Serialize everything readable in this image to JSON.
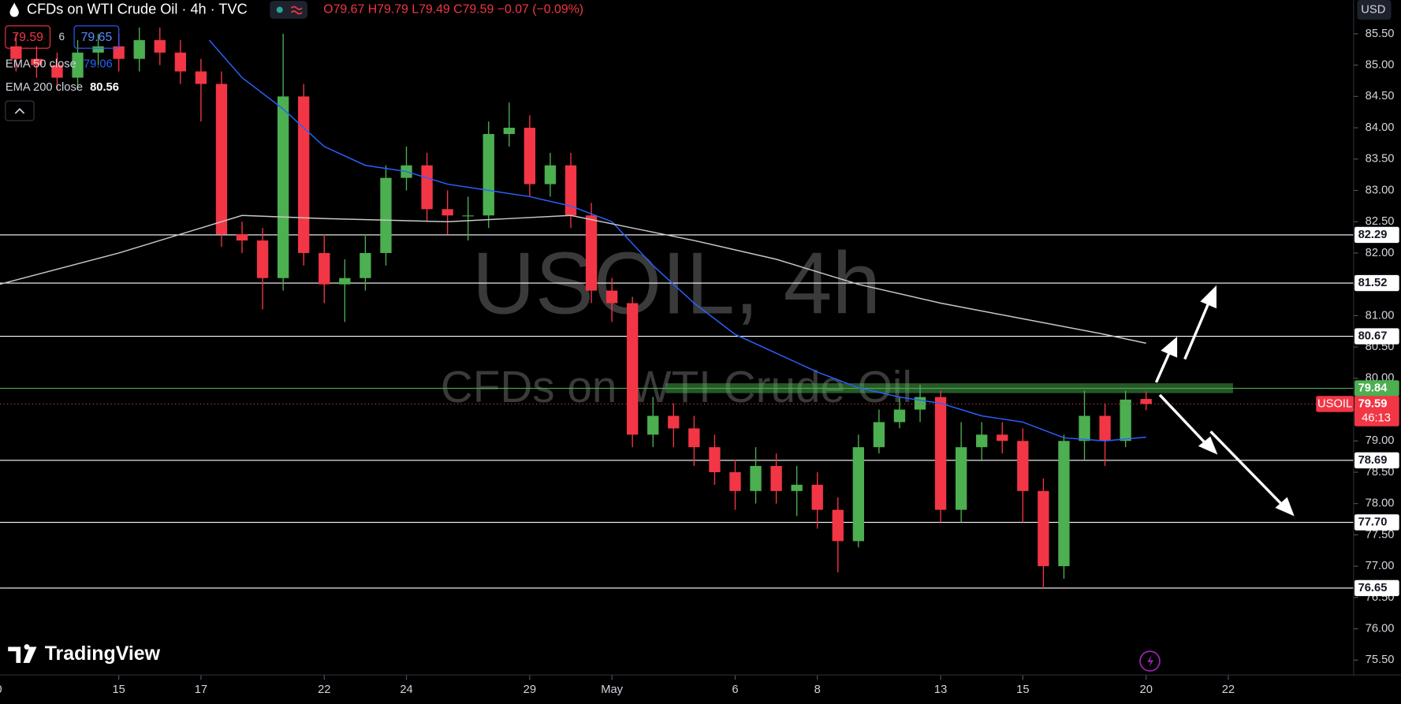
{
  "header": {
    "symbol": "CFDs on WTI Crude Oil · 4h · TVC",
    "quote": "O79.67 H79.79 L79.49 C79.59 −0.07 (−0.09%)",
    "spread": "6",
    "ask": "79.65",
    "currency": "USD"
  },
  "watermark": {
    "title": "USOIL, 4h",
    "subtitle": "CFDs on WTI Crude Oil"
  },
  "price_tag": {
    "symbol": "USOIL",
    "timer": "46:13"
  },
  "branding": "TradingView",
  "chart_data": {
    "type": "candlestick",
    "up_color": "#4caf50",
    "down_color": "#f23645",
    "xlim": [
      -2.89,
      30.05
    ],
    "ylim": [
      75.27,
      86.04
    ],
    "xticks": [
      {
        "value": -3,
        "label": "10"
      },
      {
        "value": 0,
        "label": "15"
      },
      {
        "value": 2,
        "label": "17"
      },
      {
        "value": 5,
        "label": "22"
      },
      {
        "value": 7,
        "label": "24"
      },
      {
        "value": 10,
        "label": "29"
      },
      {
        "value": 12,
        "label": "May"
      },
      {
        "value": 15,
        "label": "6"
      },
      {
        "value": 17,
        "label": "8"
      },
      {
        "value": 20,
        "label": "13"
      },
      {
        "value": 22,
        "label": "15"
      },
      {
        "value": 25,
        "label": "20"
      },
      {
        "value": 27,
        "label": "22"
      }
    ],
    "yticks": [
      {
        "value": 75.5,
        "label": "75.50"
      },
      {
        "value": 76,
        "label": "76.00"
      },
      {
        "value": 76.5,
        "label": "76.50"
      },
      {
        "value": 77,
        "label": "77.00"
      },
      {
        "value": 77.5,
        "label": "77.50"
      },
      {
        "value": 78,
        "label": "78.00"
      },
      {
        "value": 78.5,
        "label": "78.50"
      },
      {
        "value": 79,
        "label": "79.00"
      },
      {
        "value": 79.5,
        "label": "79.50"
      },
      {
        "value": 80,
        "label": "80.00"
      },
      {
        "value": 80.5,
        "label": "80.50"
      },
      {
        "value": 81,
        "label": "81.00"
      },
      {
        "value": 81.5,
        "label": "81.50"
      },
      {
        "value": 82,
        "label": "82.00"
      },
      {
        "value": 82.5,
        "label": "82.50"
      },
      {
        "value": 83,
        "label": "83.00"
      },
      {
        "value": 83.5,
        "label": "83.50"
      },
      {
        "value": 84,
        "label": "84.00"
      },
      {
        "value": 84.5,
        "label": "84.50"
      },
      {
        "value": 85,
        "label": "85.00"
      },
      {
        "value": 85.5,
        "label": "85.50"
      }
    ],
    "x": [
      -2.5,
      -2,
      -1.5,
      -1,
      -0.5,
      0,
      0.5,
      1,
      1.5,
      2,
      2.5,
      3,
      3.5,
      4,
      4.5,
      5,
      5.5,
      6,
      6.5,
      7,
      7.5,
      8,
      8.5,
      9,
      9.5,
      10,
      10.5,
      11,
      11.5,
      12,
      12.5,
      13,
      13.5,
      14,
      14.5,
      15,
      15.5,
      16,
      16.5,
      17,
      17.5,
      18,
      18.5,
      19,
      19.5,
      20,
      20.5,
      21,
      21.5,
      22,
      22.5,
      23,
      23.5,
      24,
      24.5,
      25
    ],
    "open": [
      85.3,
      85.1,
      85.0,
      84.8,
      85.2,
      85.3,
      85.1,
      85.4,
      85.2,
      84.9,
      84.7,
      82.3,
      82.2,
      81.6,
      84.5,
      82.0,
      81.5,
      81.6,
      82.0,
      83.2,
      83.4,
      82.7,
      82.6,
      82.6,
      83.9,
      84.0,
      83.1,
      83.4,
      82.6,
      81.4,
      81.2,
      79.1,
      79.4,
      79.2,
      78.9,
      78.5,
      78.2,
      78.6,
      78.2,
      78.3,
      77.9,
      77.4,
      78.9,
      79.3,
      79.5,
      79.7,
      77.9,
      78.9,
      79.1,
      79.0,
      78.2,
      77.0,
      79.0,
      79.4,
      79.0,
      79.67
    ],
    "high": [
      85.5,
      85.3,
      85.2,
      85.4,
      85.5,
      85.5,
      85.6,
      85.6,
      85.4,
      85.1,
      84.9,
      82.5,
      82.4,
      85.5,
      84.7,
      82.3,
      81.9,
      82.3,
      83.4,
      83.7,
      83.6,
      83.0,
      82.9,
      84.1,
      84.4,
      84.2,
      83.6,
      83.6,
      82.8,
      81.6,
      81.3,
      79.7,
      79.6,
      79.4,
      79.1,
      78.7,
      78.9,
      78.8,
      78.6,
      78.5,
      78.1,
      79.1,
      79.5,
      79.7,
      79.9,
      79.8,
      79.3,
      79.3,
      79.3,
      79.2,
      78.4,
      79.1,
      79.8,
      79.6,
      79.8,
      79.79
    ],
    "low": [
      84.9,
      84.8,
      84.6,
      84.6,
      85.0,
      84.9,
      84.9,
      85.0,
      84.7,
      84.1,
      82.1,
      82.0,
      81.1,
      81.4,
      81.8,
      81.2,
      80.9,
      81.4,
      81.8,
      83.0,
      82.5,
      82.3,
      82.2,
      82.4,
      83.7,
      82.9,
      82.9,
      82.4,
      81.2,
      80.9,
      78.9,
      78.9,
      78.9,
      78.6,
      78.3,
      77.9,
      78.0,
      78.0,
      77.8,
      77.6,
      76.9,
      77.3,
      78.8,
      79.2,
      79.3,
      77.7,
      77.7,
      78.7,
      78.8,
      77.7,
      76.65,
      76.8,
      78.7,
      78.6,
      78.9,
      79.49
    ],
    "close": [
      85.1,
      85.0,
      84.8,
      85.2,
      85.3,
      85.1,
      85.4,
      85.2,
      84.9,
      84.7,
      82.3,
      82.2,
      81.6,
      84.5,
      82.0,
      81.5,
      81.6,
      82.0,
      83.2,
      83.4,
      82.7,
      82.6,
      82.6,
      83.9,
      84.0,
      83.1,
      83.4,
      82.6,
      81.4,
      81.2,
      79.1,
      79.4,
      79.2,
      78.9,
      78.5,
      78.2,
      78.6,
      78.2,
      78.3,
      77.9,
      77.4,
      78.9,
      79.3,
      79.5,
      79.7,
      77.9,
      78.9,
      79.1,
      79.0,
      78.2,
      77.0,
      79.0,
      79.4,
      79.0,
      79.66,
      79.59
    ],
    "lines": [
      {
        "name": "EMA 50 close",
        "color": "#2962ff",
        "x": [
          2.2,
          3,
          4,
          5,
          6,
          7,
          8,
          9,
          10,
          11,
          12,
          13,
          14,
          15,
          16,
          17,
          18,
          19,
          20,
          21,
          22,
          23,
          24,
          25
        ],
        "values": [
          85.4,
          84.8,
          84.3,
          83.7,
          83.4,
          83.3,
          83.1,
          83.0,
          82.9,
          82.75,
          82.5,
          81.8,
          81.2,
          80.7,
          80.4,
          80.1,
          79.85,
          79.7,
          79.6,
          79.4,
          79.3,
          79.05,
          79.0,
          79.06
        ]
      },
      {
        "name": "EMA 200 close",
        "color": "#c8c8c8",
        "x": [
          -2.9,
          0,
          2,
          3,
          5,
          8,
          11,
          12.5,
          14,
          16,
          18,
          20,
          22,
          24,
          25
        ],
        "values": [
          81.5,
          82.0,
          82.4,
          82.6,
          82.55,
          82.5,
          82.6,
          82.4,
          82.2,
          81.9,
          81.5,
          81.2,
          80.95,
          80.7,
          80.56
        ]
      }
    ],
    "levels": [
      {
        "value": 82.29,
        "color": "#ffffff"
      },
      {
        "value": 81.52,
        "color": "#ffffff"
      },
      {
        "value": 80.67,
        "color": "#ffffff"
      },
      {
        "value": 79.84,
        "color": "#4caf50"
      },
      {
        "value": 78.69,
        "color": "#ffffff"
      },
      {
        "value": 77.7,
        "label": "77.70",
        "color": "#ffffff"
      },
      {
        "value": 76.65,
        "color": "#ffffff"
      }
    ]
  }
}
